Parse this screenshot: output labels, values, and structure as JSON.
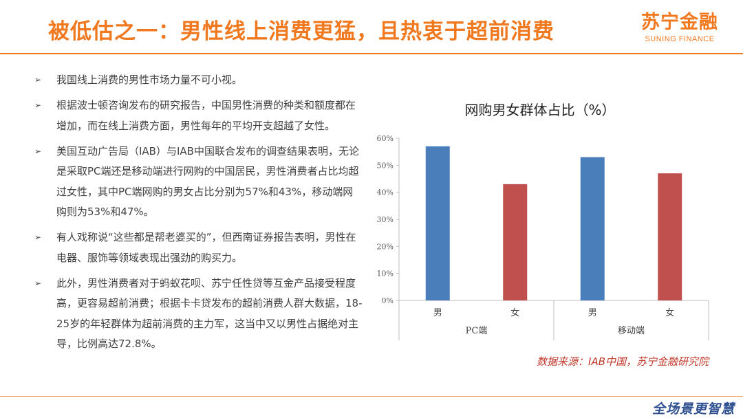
{
  "header": {
    "title": "被低估之一：男性线上消费更猛，且热衷于超前消费",
    "brand_cn": "苏宁金融",
    "brand_en": "SUNING FINANCE"
  },
  "bullets": [
    "我国线上消费的男性市场力量不可小视。",
    "根据波士顿咨询发布的研究报告，中国男性消费的种类和额度都在增加，而在线上消费方面，男性每年的平均开支超越了女性。",
    "美国互动广告局（IAB）与IAB中国联合发布的调查结果表明，无论是采取PC端还是移动端进行网购的中国居民，男性消费者占比均超过女性，其中PC端网购的男女占比分别为57%和43%，移动端网购则为53%和47%。",
    "有人戏称说“这些都是帮老婆买的”，但西南证券报告表明，男性在电器、服饰等领域表现出强劲的购买力。",
    "此外，男性消费者对于蚂蚁花呗、苏宁任性贷等互金产品接受程度高，更容易超前消费；根据卡卡贷发布的超前消费人群大数据，18-25岁的年轻群体为超前消费的主力军，这当中又以男性占据绝对主导，比例高达72.8%。"
  ],
  "chart_data": {
    "type": "bar",
    "title": "网购男女群体占比（%）",
    "categories": [
      "男",
      "女",
      "男",
      "女"
    ],
    "groups": [
      {
        "label": "PC端",
        "categories": [
          "男",
          "女"
        ]
      },
      {
        "label": "移动端",
        "categories": [
          "男",
          "女"
        ]
      }
    ],
    "values": [
      57,
      43,
      53,
      47
    ],
    "colors": [
      "#4a7ebb",
      "#c0504d",
      "#4a7ebb",
      "#c0504d"
    ],
    "yticks": [
      "0%",
      "10%",
      "20%",
      "30%",
      "40%",
      "50%",
      "60%"
    ],
    "ylim": [
      0,
      60
    ],
    "grid": false,
    "legend": "none"
  },
  "source": "数据来源：IAB中国，苏宁金融研究院",
  "footer": {
    "logo_text": "全场景更智慧"
  },
  "colors": {
    "accent": "#f0781e",
    "male_bar": "#4a7ebb",
    "female_bar": "#c0504d",
    "source_text": "#c0392b"
  }
}
